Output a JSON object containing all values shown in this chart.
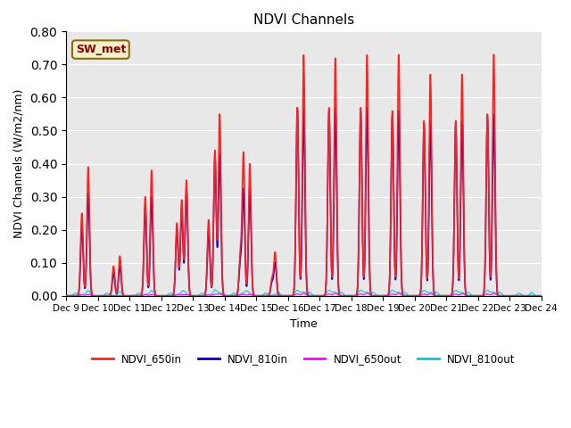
{
  "title": "NDVI Channels",
  "xlabel": "Time",
  "ylabel": "NDVI Channels (W/m2/nm)",
  "ylim": [
    0.0,
    0.8
  ],
  "yticks": [
    0.0,
    0.1,
    0.2,
    0.3,
    0.4,
    0.5,
    0.6,
    0.7,
    0.8
  ],
  "annotation_text": "SW_met",
  "annotation_color": "#8B0000",
  "annotation_bg": "#F5F0C8",
  "annotation_border": "#8B6914",
  "colors": {
    "NDVI_650in": "#FF2020",
    "NDVI_810in": "#0000CC",
    "NDVI_650out": "#FF00FF",
    "NDVI_810out": "#00CCCC"
  },
  "bg_color": "#E8E8E8",
  "x_tick_labels": [
    "Dec 9",
    "Dec 10",
    "Dec 11",
    "Dec 12",
    "Dec 13",
    "Dec 14",
    "Dec 15",
    "Dec 16",
    "Dec 17",
    "Dec 18",
    "Dec 19",
    "Dec 20",
    "Dec 21",
    "Dec 22",
    "Dec 23",
    "Dec 24"
  ],
  "linewidth_main": 1.2,
  "linewidth_out": 0.8
}
